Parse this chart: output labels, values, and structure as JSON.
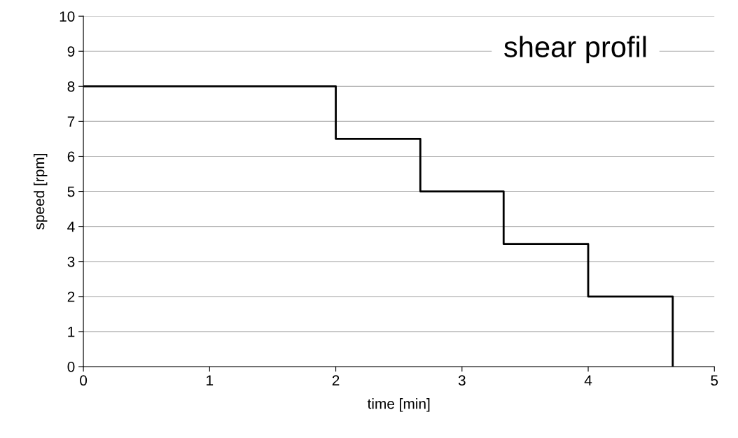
{
  "chart_data": {
    "type": "step",
    "title": "shear profil",
    "xlabel": "time [min]",
    "ylabel": "speed [rpm]",
    "x": [
      0,
      2,
      2.67,
      3.33,
      4,
      4.67
    ],
    "series": [
      {
        "color": "#000000",
        "values": [
          8,
          6.5,
          5,
          3.5,
          2,
          0
        ]
      }
    ],
    "xlim": [
      0,
      5
    ],
    "xticks": [
      0,
      1,
      2,
      3,
      4,
      5
    ],
    "ylim": [
      0,
      10
    ],
    "yticks": [
      0,
      1,
      2,
      3,
      4,
      5,
      6,
      7,
      8,
      9,
      10
    ],
    "grid": "y",
    "legend": false,
    "marker": "none",
    "line_style": "solid"
  }
}
